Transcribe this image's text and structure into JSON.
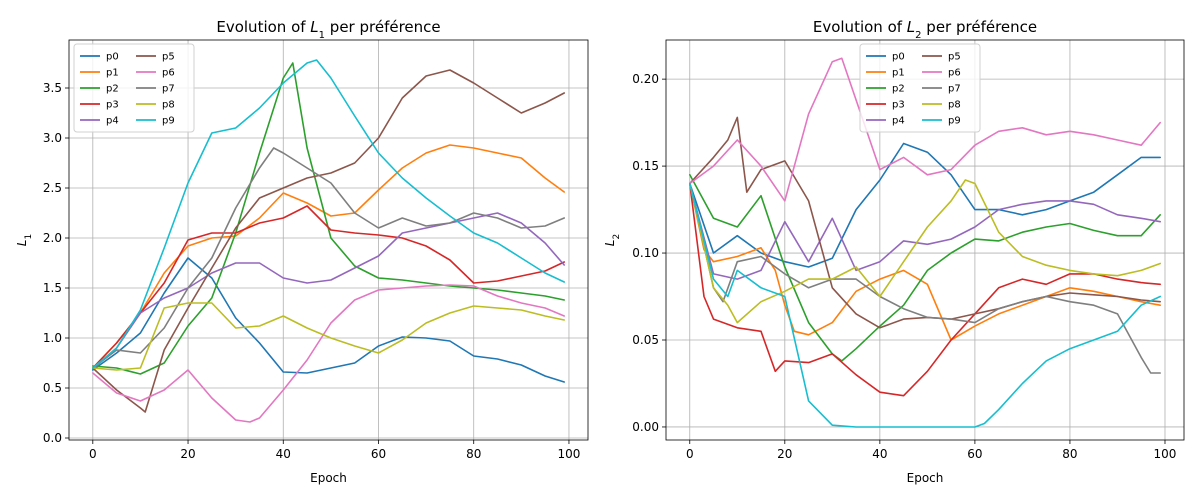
{
  "chart_data": [
    {
      "type": "line",
      "title": "Evolution of L1 per préférence",
      "title_parts": {
        "prefix": "Evolution of ",
        "symbol": "L",
        "subscript": "1",
        "suffix": " per préférence"
      },
      "xlabel": "Epoch",
      "ylabel": "L1",
      "ylabel_parts": {
        "symbol": "L",
        "subscript": "1"
      },
      "xlim": [
        -5,
        104
      ],
      "ylim": [
        -0.02,
        3.98
      ],
      "xticks": [
        0,
        20,
        40,
        60,
        80,
        100
      ],
      "xtick_labels": [
        "0",
        "20",
        "40",
        "60",
        "80",
        "100"
      ],
      "yticks": [
        0.0,
        0.5,
        1.0,
        1.5,
        2.0,
        2.5,
        3.0,
        3.5
      ],
      "ytick_labels": [
        "0.0",
        "0.5",
        "1.0",
        "1.5",
        "2.0",
        "2.5",
        "3.0",
        "3.5"
      ],
      "grid": true,
      "legend_position": "top-left",
      "legend_columns": 2,
      "series": [
        {
          "name": "p0",
          "color": "#1f77b4",
          "x": [
            0,
            5,
            10,
            15,
            20,
            25,
            30,
            35,
            40,
            45,
            50,
            55,
            60,
            65,
            70,
            75,
            80,
            85,
            90,
            95,
            99
          ],
          "values": [
            0.68,
            0.85,
            1.05,
            1.45,
            1.8,
            1.6,
            1.2,
            0.95,
            0.66,
            0.65,
            0.7,
            0.75,
            0.92,
            1.01,
            1.0,
            0.97,
            0.82,
            0.79,
            0.73,
            0.62,
            0.56
          ]
        },
        {
          "name": "p1",
          "color": "#ff7f0e",
          "x": [
            0,
            5,
            10,
            15,
            20,
            25,
            30,
            35,
            40,
            45,
            50,
            55,
            60,
            65,
            70,
            75,
            80,
            85,
            90,
            95,
            99
          ],
          "values": [
            0.7,
            0.95,
            1.25,
            1.65,
            1.92,
            2.0,
            2.02,
            2.2,
            2.45,
            2.35,
            2.22,
            2.25,
            2.48,
            2.7,
            2.85,
            2.93,
            2.9,
            2.85,
            2.8,
            2.6,
            2.46
          ]
        },
        {
          "name": "p2",
          "color": "#2ca02c",
          "x": [
            0,
            5,
            10,
            15,
            20,
            25,
            30,
            35,
            40,
            42,
            45,
            50,
            55,
            60,
            65,
            70,
            75,
            80,
            85,
            90,
            95,
            99
          ],
          "values": [
            0.72,
            0.7,
            0.64,
            0.75,
            1.12,
            1.4,
            2.05,
            2.85,
            3.6,
            3.75,
            2.9,
            2.0,
            1.72,
            1.6,
            1.58,
            1.55,
            1.52,
            1.5,
            1.48,
            1.45,
            1.42,
            1.38
          ]
        },
        {
          "name": "p3",
          "color": "#d62728",
          "x": [
            0,
            5,
            10,
            15,
            20,
            25,
            30,
            35,
            40,
            45,
            50,
            55,
            60,
            65,
            70,
            75,
            80,
            85,
            90,
            95,
            99
          ],
          "values": [
            0.7,
            0.95,
            1.25,
            1.55,
            1.98,
            2.05,
            2.05,
            2.15,
            2.2,
            2.32,
            2.08,
            2.05,
            2.03,
            2.0,
            1.92,
            1.78,
            1.55,
            1.57,
            1.62,
            1.67,
            1.76
          ]
        },
        {
          "name": "p4",
          "color": "#9467bd",
          "x": [
            0,
            5,
            10,
            15,
            20,
            25,
            30,
            35,
            40,
            45,
            50,
            55,
            60,
            65,
            70,
            75,
            80,
            85,
            90,
            95,
            99
          ],
          "values": [
            0.69,
            0.9,
            1.25,
            1.4,
            1.5,
            1.65,
            1.75,
            1.75,
            1.6,
            1.55,
            1.58,
            1.7,
            1.82,
            2.05,
            2.1,
            2.15,
            2.2,
            2.25,
            2.15,
            1.95,
            1.73
          ]
        },
        {
          "name": "p5",
          "color": "#8c564b",
          "x": [
            0,
            5,
            10,
            11,
            15,
            20,
            25,
            30,
            35,
            40,
            45,
            50,
            55,
            60,
            65,
            70,
            75,
            80,
            85,
            90,
            95,
            99
          ],
          "values": [
            0.7,
            0.48,
            0.3,
            0.26,
            0.88,
            1.3,
            1.7,
            2.1,
            2.4,
            2.5,
            2.6,
            2.65,
            2.75,
            3.0,
            3.4,
            3.62,
            3.68,
            3.55,
            3.4,
            3.25,
            3.35,
            3.45
          ]
        },
        {
          "name": "p6",
          "color": "#e377c2",
          "x": [
            0,
            5,
            10,
            15,
            20,
            25,
            30,
            33,
            35,
            40,
            45,
            50,
            55,
            60,
            65,
            70,
            75,
            80,
            85,
            90,
            95,
            99
          ],
          "values": [
            0.65,
            0.45,
            0.37,
            0.48,
            0.68,
            0.4,
            0.18,
            0.16,
            0.2,
            0.48,
            0.78,
            1.15,
            1.38,
            1.48,
            1.5,
            1.52,
            1.53,
            1.52,
            1.42,
            1.35,
            1.3,
            1.22
          ]
        },
        {
          "name": "p7",
          "color": "#7f7f7f",
          "x": [
            0,
            5,
            10,
            15,
            20,
            25,
            30,
            35,
            38,
            40,
            45,
            50,
            55,
            60,
            65,
            70,
            75,
            80,
            85,
            90,
            95,
            99
          ],
          "values": [
            0.7,
            0.88,
            0.85,
            1.1,
            1.5,
            1.8,
            2.3,
            2.7,
            2.9,
            2.85,
            2.7,
            2.55,
            2.25,
            2.1,
            2.2,
            2.12,
            2.15,
            2.25,
            2.2,
            2.1,
            2.12,
            2.2
          ]
        },
        {
          "name": "p8",
          "color": "#bcbd22",
          "x": [
            0,
            5,
            10,
            15,
            20,
            25,
            30,
            35,
            40,
            45,
            50,
            55,
            60,
            65,
            70,
            75,
            80,
            85,
            90,
            95,
            99
          ],
          "values": [
            0.7,
            0.68,
            0.7,
            1.3,
            1.35,
            1.35,
            1.1,
            1.12,
            1.22,
            1.1,
            1.0,
            0.92,
            0.85,
            0.98,
            1.15,
            1.25,
            1.32,
            1.3,
            1.28,
            1.22,
            1.18
          ]
        },
        {
          "name": "p9",
          "color": "#17becf",
          "x": [
            0,
            5,
            10,
            15,
            20,
            25,
            30,
            35,
            40,
            45,
            47,
            50,
            55,
            60,
            65,
            70,
            75,
            80,
            85,
            90,
            95,
            99
          ],
          "values": [
            0.7,
            0.9,
            1.28,
            1.9,
            2.55,
            3.05,
            3.1,
            3.3,
            3.55,
            3.75,
            3.78,
            3.6,
            3.22,
            2.85,
            2.6,
            2.4,
            2.22,
            2.05,
            1.95,
            1.8,
            1.65,
            1.56
          ]
        }
      ]
    },
    {
      "type": "line",
      "title": "Evolution of L2 per préférence",
      "title_parts": {
        "prefix": "Evolution of ",
        "symbol": "L",
        "subscript": "2",
        "suffix": " per préférence"
      },
      "xlabel": "Epoch",
      "ylabel": "L2",
      "ylabel_parts": {
        "symbol": "L",
        "subscript": "2"
      },
      "xlim": [
        -5,
        104
      ],
      "ylim": [
        -0.0075,
        0.2225
      ],
      "xticks": [
        0,
        20,
        40,
        60,
        80,
        100
      ],
      "xtick_labels": [
        "0",
        "20",
        "40",
        "60",
        "80",
        "100"
      ],
      "yticks": [
        0.0,
        0.05,
        0.1,
        0.15,
        0.2
      ],
      "ytick_labels": [
        "0.00",
        "0.05",
        "0.10",
        "0.15",
        "0.20"
      ],
      "grid": true,
      "legend_position": "top-center",
      "legend_columns": 2,
      "series": [
        {
          "name": "p0",
          "color": "#1f77b4",
          "x": [
            0,
            5,
            10,
            15,
            20,
            25,
            30,
            35,
            40,
            45,
            50,
            55,
            60,
            65,
            70,
            75,
            80,
            85,
            90,
            95,
            99
          ],
          "values": [
            0.14,
            0.1,
            0.11,
            0.1,
            0.095,
            0.092,
            0.097,
            0.125,
            0.142,
            0.163,
            0.158,
            0.145,
            0.125,
            0.125,
            0.122,
            0.125,
            0.13,
            0.135,
            0.145,
            0.155,
            0.155
          ]
        },
        {
          "name": "p1",
          "color": "#ff7f0e",
          "x": [
            0,
            3,
            5,
            10,
            15,
            18,
            20,
            22,
            25,
            30,
            35,
            40,
            45,
            50,
            55,
            60,
            65,
            70,
            75,
            80,
            85,
            90,
            95,
            99
          ],
          "values": [
            0.14,
            0.102,
            0.095,
            0.098,
            0.103,
            0.09,
            0.07,
            0.055,
            0.053,
            0.06,
            0.078,
            0.085,
            0.09,
            0.082,
            0.05,
            0.058,
            0.065,
            0.07,
            0.075,
            0.08,
            0.078,
            0.075,
            0.072,
            0.07
          ]
        },
        {
          "name": "p2",
          "color": "#2ca02c",
          "x": [
            0,
            5,
            10,
            15,
            20,
            25,
            30,
            32,
            35,
            40,
            45,
            50,
            55,
            60,
            65,
            70,
            75,
            80,
            85,
            90,
            95,
            99
          ],
          "values": [
            0.145,
            0.12,
            0.115,
            0.133,
            0.092,
            0.06,
            0.042,
            0.038,
            0.045,
            0.058,
            0.07,
            0.09,
            0.1,
            0.108,
            0.107,
            0.112,
            0.115,
            0.117,
            0.113,
            0.11,
            0.11,
            0.122
          ]
        },
        {
          "name": "p3",
          "color": "#d62728",
          "x": [
            0,
            3,
            5,
            10,
            15,
            18,
            20,
            25,
            30,
            35,
            40,
            45,
            50,
            55,
            60,
            65,
            70,
            75,
            80,
            85,
            90,
            95,
            99
          ],
          "values": [
            0.14,
            0.075,
            0.062,
            0.057,
            0.055,
            0.032,
            0.038,
            0.037,
            0.042,
            0.03,
            0.02,
            0.018,
            0.032,
            0.05,
            0.065,
            0.08,
            0.085,
            0.082,
            0.088,
            0.088,
            0.085,
            0.083,
            0.082
          ]
        },
        {
          "name": "p4",
          "color": "#9467bd",
          "x": [
            0,
            5,
            10,
            15,
            20,
            25,
            30,
            35,
            40,
            45,
            50,
            55,
            60,
            65,
            70,
            75,
            80,
            85,
            90,
            95,
            99
          ],
          "values": [
            0.14,
            0.088,
            0.085,
            0.09,
            0.118,
            0.095,
            0.12,
            0.09,
            0.095,
            0.107,
            0.105,
            0.108,
            0.115,
            0.125,
            0.128,
            0.13,
            0.13,
            0.128,
            0.122,
            0.12,
            0.118
          ]
        },
        {
          "name": "p5",
          "color": "#8c564b",
          "x": [
            0,
            5,
            8,
            10,
            12,
            15,
            20,
            25,
            30,
            35,
            40,
            45,
            50,
            55,
            60,
            65,
            70,
            75,
            80,
            85,
            90,
            95,
            99
          ],
          "values": [
            0.14,
            0.155,
            0.165,
            0.178,
            0.135,
            0.148,
            0.153,
            0.13,
            0.08,
            0.065,
            0.057,
            0.062,
            0.063,
            0.062,
            0.065,
            0.068,
            0.072,
            0.075,
            0.077,
            0.076,
            0.075,
            0.073,
            0.072
          ]
        },
        {
          "name": "p6",
          "color": "#e377c2",
          "x": [
            0,
            5,
            10,
            15,
            20,
            25,
            30,
            32,
            35,
            40,
            45,
            50,
            55,
            60,
            65,
            70,
            75,
            80,
            85,
            90,
            95,
            99
          ],
          "values": [
            0.14,
            0.15,
            0.165,
            0.15,
            0.13,
            0.18,
            0.21,
            0.212,
            0.188,
            0.148,
            0.155,
            0.145,
            0.148,
            0.162,
            0.17,
            0.172,
            0.168,
            0.17,
            0.168,
            0.165,
            0.162,
            0.175
          ]
        },
        {
          "name": "p7",
          "color": "#7f7f7f",
          "x": [
            0,
            5,
            7,
            10,
            15,
            20,
            25,
            30,
            35,
            40,
            45,
            50,
            55,
            60,
            65,
            70,
            75,
            80,
            85,
            90,
            95,
            97,
            99
          ],
          "values": [
            0.14,
            0.08,
            0.072,
            0.095,
            0.098,
            0.088,
            0.08,
            0.085,
            0.085,
            0.075,
            0.068,
            0.063,
            0.062,
            0.06,
            0.068,
            0.072,
            0.075,
            0.072,
            0.07,
            0.065,
            0.04,
            0.031,
            0.031
          ]
        },
        {
          "name": "p8",
          "color": "#bcbd22",
          "x": [
            0,
            5,
            8,
            10,
            15,
            20,
            25,
            30,
            35,
            40,
            45,
            50,
            55,
            58,
            60,
            65,
            70,
            75,
            80,
            85,
            90,
            95,
            99
          ],
          "values": [
            0.14,
            0.08,
            0.07,
            0.06,
            0.072,
            0.078,
            0.085,
            0.085,
            0.092,
            0.075,
            0.095,
            0.115,
            0.13,
            0.142,
            0.14,
            0.112,
            0.098,
            0.093,
            0.09,
            0.088,
            0.087,
            0.09,
            0.094
          ]
        },
        {
          "name": "p9",
          "color": "#17becf",
          "x": [
            0,
            5,
            8,
            10,
            15,
            20,
            25,
            30,
            35,
            40,
            45,
            50,
            55,
            60,
            62,
            65,
            70,
            75,
            80,
            85,
            90,
            95,
            99
          ],
          "values": [
            0.14,
            0.085,
            0.075,
            0.09,
            0.08,
            0.075,
            0.015,
            0.001,
            0.0,
            0.0,
            0.0,
            0.0,
            0.0,
            0.0,
            0.002,
            0.01,
            0.025,
            0.038,
            0.045,
            0.05,
            0.055,
            0.07,
            0.075
          ]
        }
      ]
    }
  ]
}
